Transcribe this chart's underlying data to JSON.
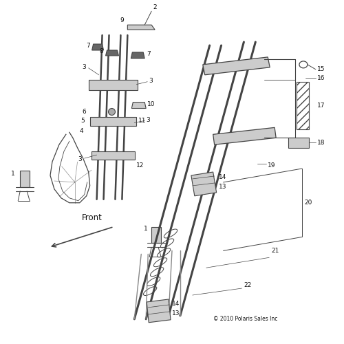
{
  "background": "#ffffff",
  "copyright": "© 2010 Polaris Sales Inc",
  "front_label": "Front",
  "fig_width": 5.0,
  "fig_height": 5.0,
  "dpi": 100,
  "line_color": "#444444",
  "text_color": "#111111",
  "gray_fill": "#cccccc",
  "dark_fill": "#666666",
  "label_fontsize": 6.5
}
